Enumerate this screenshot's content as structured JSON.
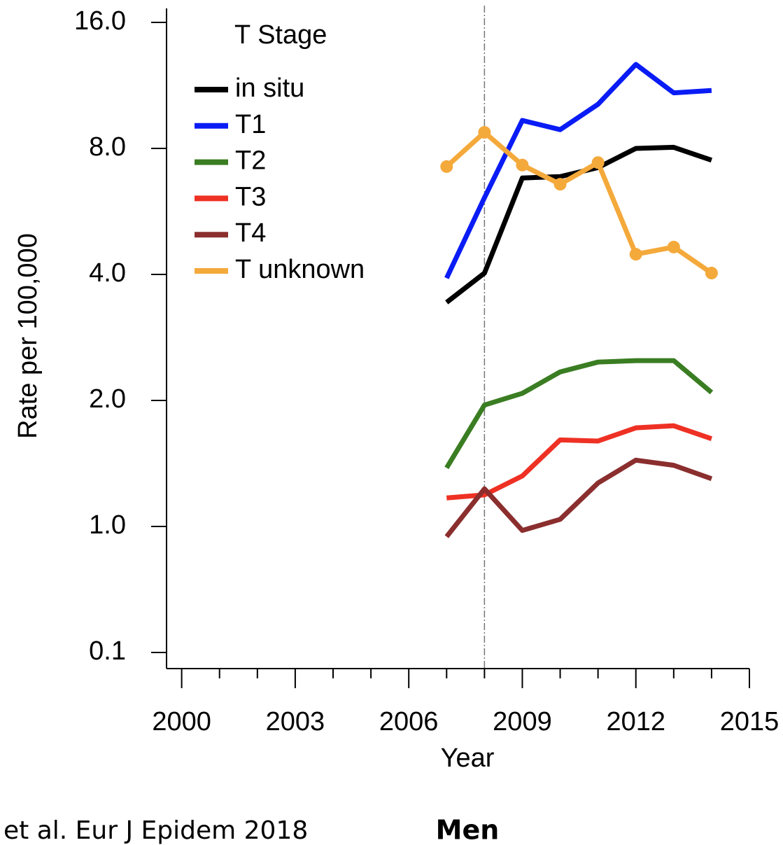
{
  "chart_data": {
    "type": "line",
    "x_label": "Year",
    "y_label": "Rate per 100,000",
    "legend_title": "T Stage",
    "legend_position": "upper left",
    "log_scale": true,
    "reference_line_x": 2008,
    "x": [
      2007,
      2008,
      2009,
      2010,
      2011,
      2012,
      2013,
      2014
    ],
    "series": [
      {
        "name": "in situ",
        "color": "#000000",
        "markers": false,
        "values": [
          3.43,
          4.03,
          6.8,
          6.85,
          7.2,
          8.0,
          8.05,
          7.5
        ]
      },
      {
        "name": "T1",
        "color": "#0a1cf5",
        "markers": false,
        "values": [
          3.92,
          6.1,
          9.33,
          8.87,
          10.2,
          12.7,
          10.86,
          11.0
        ]
      },
      {
        "name": "T2",
        "color": "#3a7d22",
        "markers": false,
        "values": [
          1.38,
          1.95,
          2.08,
          2.34,
          2.47,
          2.49,
          2.49,
          2.09
        ]
      },
      {
        "name": "T3",
        "color": "#ee3124",
        "markers": false,
        "values": [
          1.17,
          1.19,
          1.32,
          1.61,
          1.6,
          1.72,
          1.74,
          1.62
        ]
      },
      {
        "name": "T4",
        "color": "#8b2e2e",
        "markers": false,
        "values": [
          0.83,
          1.23,
          0.93,
          1.04,
          1.27,
          1.44,
          1.4,
          1.3
        ]
      },
      {
        "name": "T unknown",
        "color": "#f4a93b",
        "markers": true,
        "values": [
          7.24,
          8.74,
          7.3,
          6.57,
          7.4,
          4.47,
          4.65,
          4.03
        ]
      }
    ],
    "xlim": [
      1999.6,
      2015
    ],
    "xticks": [
      2000,
      2003,
      2006,
      2009,
      2012,
      2015
    ],
    "xminorticks": [
      2001,
      2002,
      2004,
      2005,
      2007,
      2008,
      2010,
      2011,
      2013,
      2014
    ],
    "ylim": [
      0.1,
      16
    ],
    "yticks": [
      0.1,
      {
        "value": 1,
        "label": "1.0"
      },
      {
        "value": 2,
        "label": "2.0"
      },
      {
        "value": 4,
        "label": "4.0"
      },
      {
        "value": 8,
        "label": "8.0"
      },
      {
        "value": 16,
        "label": "16.0"
      }
    ]
  },
  "footer": {
    "citation": "et al. Eur J Epidem 2018",
    "panel": "Men"
  }
}
